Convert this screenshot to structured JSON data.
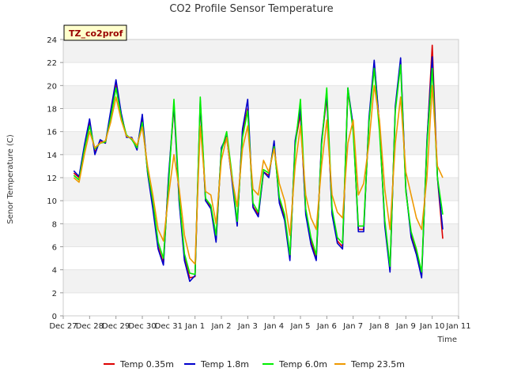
{
  "chart_data": {
    "type": "line",
    "title": "CO2 Profile Sensor Temperature",
    "xlabel": "Time",
    "ylabel": "Senor Temperature (C)",
    "annotation": "TZ_co2prof",
    "ylim": [
      0,
      24
    ],
    "yticks": [
      0,
      2,
      4,
      6,
      8,
      10,
      12,
      14,
      16,
      18,
      20,
      22,
      24
    ],
    "x_tick_labels": [
      "Dec 27",
      "Dec 28",
      "Dec 29",
      "Dec 30",
      "Dec 31",
      "Jan 1",
      "Jan 2",
      "Jan 3",
      "Jan 4",
      "Jan 5",
      "Jan 6",
      "Jan 7",
      "Jan 8",
      "Jan 9",
      "Jan 10",
      "Jan 11"
    ],
    "x_unit": "days from Dec 27",
    "xlim": [
      0,
      15
    ],
    "grid": "horizontal bands",
    "legend_position": "bottom",
    "series": [
      {
        "name": "Temp 0.35m",
        "color": "#dd0000",
        "x": [
          0.4,
          0.6,
          0.8,
          1.0,
          1.2,
          1.4,
          1.6,
          1.8,
          2.0,
          2.2,
          2.4,
          2.6,
          2.8,
          3.0,
          3.2,
          3.4,
          3.6,
          3.8,
          4.0,
          4.2,
          4.4,
          4.6,
          4.8,
          5.0,
          5.2,
          5.4,
          5.6,
          5.8,
          6.0,
          6.2,
          6.4,
          6.6,
          6.8,
          7.0,
          7.2,
          7.4,
          7.6,
          7.8,
          8.0,
          8.2,
          8.4,
          8.6,
          8.8,
          9.0,
          9.2,
          9.4,
          9.6,
          9.8,
          10.0,
          10.2,
          10.4,
          10.6,
          10.8,
          11.0,
          11.2,
          11.4,
          11.6,
          11.8,
          12.0,
          12.2,
          12.4,
          12.6,
          12.8,
          13.0,
          13.2,
          13.4,
          13.6,
          13.8,
          14.0,
          14.2,
          14.4
        ],
        "y": [
          12.4,
          12.0,
          14.6,
          16.8,
          14.2,
          15.2,
          15.0,
          17.5,
          20.2,
          17.5,
          15.6,
          15.4,
          14.5,
          17.2,
          12.5,
          9.5,
          6.0,
          4.6,
          12.0,
          18.2,
          10.0,
          5.0,
          3.3,
          3.4,
          18.5,
          10.0,
          9.5,
          6.6,
          14.5,
          15.5,
          12.0,
          8.0,
          16.0,
          18.0,
          9.5,
          8.8,
          12.5,
          12.2,
          15.0,
          10.0,
          8.5,
          5.0,
          15.0,
          17.5,
          9.0,
          6.5,
          5.0,
          15.0,
          19.0,
          9.0,
          6.5,
          6.0,
          19.5,
          16.5,
          7.5,
          7.5,
          17.0,
          22.0,
          16.5,
          8.0,
          4.0,
          18.0,
          22.0,
          11.0,
          7.0,
          5.5,
          3.5,
          15.0,
          23.5,
          12.0,
          6.7
        ]
      },
      {
        "name": "Temp 1.8m",
        "color": "#0000cc",
        "x": [
          0.4,
          0.6,
          0.8,
          1.0,
          1.2,
          1.4,
          1.6,
          1.8,
          2.0,
          2.2,
          2.4,
          2.6,
          2.8,
          3.0,
          3.2,
          3.4,
          3.6,
          3.8,
          4.0,
          4.2,
          4.4,
          4.6,
          4.8,
          5.0,
          5.2,
          5.4,
          5.6,
          5.8,
          6.0,
          6.2,
          6.4,
          6.6,
          6.8,
          7.0,
          7.2,
          7.4,
          7.6,
          7.8,
          8.0,
          8.2,
          8.4,
          8.6,
          8.8,
          9.0,
          9.2,
          9.4,
          9.6,
          9.8,
          10.0,
          10.2,
          10.4,
          10.6,
          10.8,
          11.0,
          11.2,
          11.4,
          11.6,
          11.8,
          12.0,
          12.2,
          12.4,
          12.6,
          12.8,
          13.0,
          13.2,
          13.4,
          13.6,
          13.8,
          14.0,
          14.2,
          14.4
        ],
        "y": [
          12.6,
          12.1,
          14.8,
          17.1,
          14.0,
          15.3,
          15.0,
          17.8,
          20.5,
          17.6,
          15.5,
          15.5,
          14.4,
          17.5,
          12.4,
          9.3,
          5.8,
          4.4,
          12.2,
          18.4,
          9.8,
          4.8,
          3.0,
          3.5,
          18.7,
          10.0,
          9.3,
          6.4,
          14.6,
          15.6,
          11.8,
          7.8,
          16.2,
          18.8,
          9.4,
          8.6,
          12.5,
          12.0,
          15.2,
          9.8,
          8.3,
          4.8,
          15.2,
          18.0,
          8.8,
          6.2,
          4.8,
          15.2,
          19.3,
          8.8,
          6.3,
          5.8,
          19.8,
          16.5,
          7.3,
          7.3,
          17.2,
          22.2,
          16.5,
          7.8,
          3.8,
          18.2,
          22.4,
          11.0,
          6.8,
          5.3,
          3.3,
          15.2,
          22.5,
          12.0,
          7.5
        ]
      },
      {
        "name": "Temp 6.0m",
        "color": "#00ee00",
        "x": [
          0.4,
          0.6,
          0.8,
          1.0,
          1.2,
          1.4,
          1.6,
          1.8,
          2.0,
          2.2,
          2.4,
          2.6,
          2.8,
          3.0,
          3.2,
          3.4,
          3.6,
          3.8,
          4.0,
          4.2,
          4.4,
          4.6,
          4.8,
          5.0,
          5.2,
          5.4,
          5.6,
          5.8,
          6.0,
          6.2,
          6.4,
          6.6,
          6.8,
          7.0,
          7.2,
          7.4,
          7.6,
          7.8,
          8.0,
          8.2,
          8.4,
          8.6,
          8.8,
          9.0,
          9.2,
          9.4,
          9.6,
          9.8,
          10.0,
          10.2,
          10.4,
          10.6,
          10.8,
          11.0,
          11.2,
          11.4,
          11.6,
          11.8,
          12.0,
          12.2,
          12.4,
          12.6,
          12.8,
          13.0,
          13.2,
          13.4,
          13.6,
          13.8,
          14.0,
          14.2,
          14.4
        ],
        "y": [
          12.2,
          11.8,
          14.4,
          16.5,
          14.5,
          15.0,
          15.1,
          17.2,
          19.8,
          17.3,
          15.7,
          15.3,
          14.6,
          16.8,
          12.6,
          10.0,
          6.4,
          5.0,
          11.5,
          18.8,
          10.3,
          5.4,
          3.7,
          3.6,
          19.0,
          10.2,
          9.6,
          7.0,
          14.3,
          16.0,
          12.3,
          8.2,
          15.5,
          17.8,
          9.8,
          9.0,
          12.7,
          12.4,
          14.7,
          10.3,
          8.8,
          5.3,
          14.7,
          18.8,
          9.3,
          6.8,
          5.3,
          14.8,
          19.8,
          9.3,
          6.8,
          6.3,
          19.8,
          16.0,
          7.8,
          7.8,
          16.8,
          21.5,
          16.0,
          8.3,
          4.3,
          17.8,
          21.8,
          10.8,
          7.3,
          5.8,
          3.8,
          14.8,
          21.5,
          12.0,
          8.8
        ]
      },
      {
        "name": "Temp 23.5m",
        "color": "#ee9900",
        "x": [
          0.4,
          0.6,
          0.8,
          1.0,
          1.2,
          1.4,
          1.6,
          1.8,
          2.0,
          2.2,
          2.4,
          2.6,
          2.8,
          3.0,
          3.2,
          3.4,
          3.6,
          3.8,
          4.0,
          4.2,
          4.4,
          4.6,
          4.8,
          5.0,
          5.2,
          5.4,
          5.6,
          5.8,
          6.0,
          6.2,
          6.4,
          6.6,
          6.8,
          7.0,
          7.2,
          7.4,
          7.6,
          7.8,
          8.0,
          8.2,
          8.4,
          8.6,
          8.8,
          9.0,
          9.2,
          9.4,
          9.6,
          9.8,
          10.0,
          10.2,
          10.4,
          10.6,
          10.8,
          11.0,
          11.2,
          11.4,
          11.6,
          11.8,
          12.0,
          12.2,
          12.4,
          12.6,
          12.8,
          13.0,
          13.2,
          13.4,
          13.6,
          13.8,
          14.0,
          14.2,
          14.4
        ],
        "y": [
          12.0,
          11.6,
          14.0,
          16.0,
          14.6,
          15.0,
          15.2,
          16.8,
          19.0,
          17.0,
          15.6,
          15.4,
          14.8,
          16.4,
          13.0,
          10.5,
          7.5,
          6.5,
          10.5,
          14.0,
          11.0,
          7.0,
          5.0,
          4.5,
          16.5,
          10.8,
          10.5,
          8.0,
          13.5,
          15.5,
          12.0,
          9.5,
          14.5,
          16.5,
          11.0,
          10.5,
          13.5,
          12.5,
          14.5,
          11.5,
          10.0,
          7.0,
          13.0,
          16.5,
          10.5,
          8.5,
          7.5,
          13.0,
          17.0,
          10.5,
          9.0,
          8.5,
          15.0,
          17.0,
          10.5,
          11.5,
          15.0,
          20.0,
          17.0,
          11.0,
          7.5,
          15.0,
          19.0,
          12.5,
          10.5,
          8.5,
          7.5,
          12.0,
          20.0,
          13.0,
          12.0
        ]
      }
    ]
  }
}
